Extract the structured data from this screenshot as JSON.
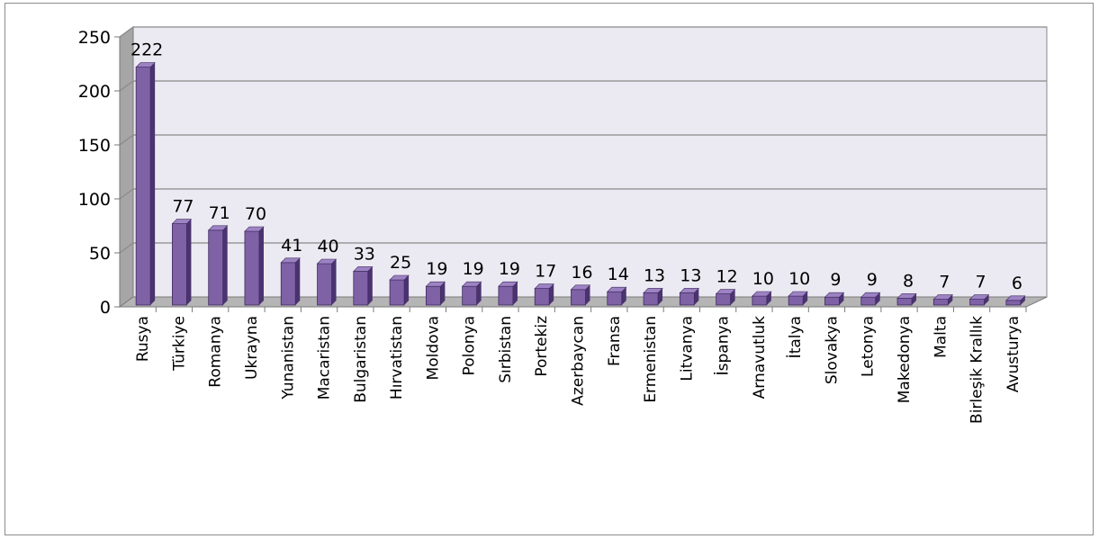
{
  "chart_data": {
    "type": "bar",
    "title": "",
    "xlabel": "",
    "ylabel": "",
    "ylim": [
      0,
      250
    ],
    "yticks": [
      0,
      50,
      100,
      150,
      200,
      250
    ],
    "grid": true,
    "legend": "none",
    "three_d": true,
    "bar_color": "#7f61a6",
    "bar_color_dark": "#4b3370",
    "bar_color_light": "#9d83c3",
    "wall_color": "#ebeaf2",
    "grid_color": "#8a8a8a",
    "categories": [
      "Rusya",
      "Türkiye",
      "Romanya",
      "Ukrayna",
      "Yunanistan",
      "Macaristan",
      "Bulgaristan",
      "Hırvatistan",
      "Moldova",
      "Polonya",
      "Sırbistan",
      "Portekiz",
      "Azerbaycan",
      "Fransa",
      "Ermenistan",
      "Litvanya",
      "İspanya",
      "Arnavutluk",
      "İtalya",
      "Slovakya",
      "Letonya",
      "Makedonya",
      "Malta",
      "Birleşik Krallık",
      "Avusturya"
    ],
    "values": [
      222,
      77,
      71,
      70,
      41,
      40,
      33,
      25,
      19,
      19,
      19,
      17,
      16,
      14,
      13,
      13,
      12,
      10,
      10,
      9,
      9,
      8,
      7,
      7,
      6
    ]
  }
}
